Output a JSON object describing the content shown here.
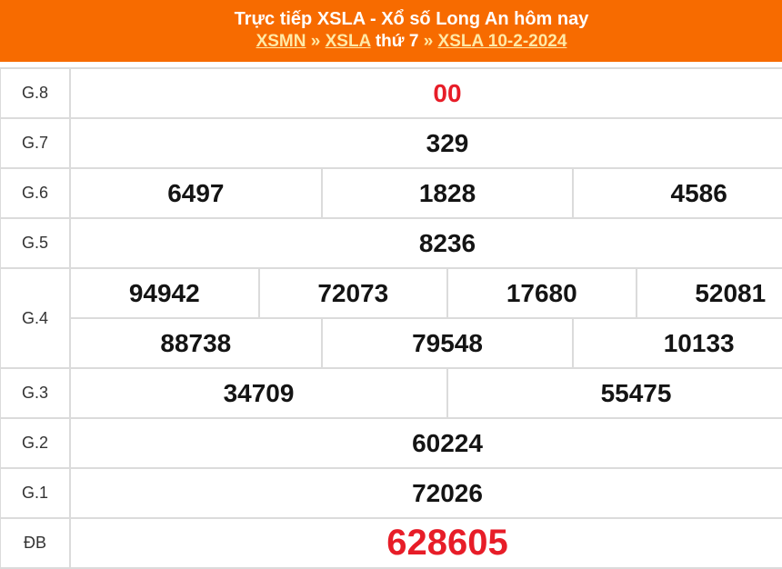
{
  "header": {
    "title": "Trực tiếp XSLA - Xổ số Long An hôm nay",
    "breadcrumb": {
      "home": "XSMN",
      "sep1": "»",
      "region": "XSLA",
      "weekday": "thứ 7",
      "sep2": "»",
      "date_link": "XSLA 10-2-2024"
    }
  },
  "colors": {
    "header_bg": "#F76B00",
    "title_text": "#FFFFFF",
    "breadcrumb_link": "#FFE9A6",
    "value_text": "#141414",
    "highlight_red": "#E71D28",
    "table_border": "#DBDBDB",
    "row_label": "#333333"
  },
  "results": {
    "g8": {
      "label": "G.8",
      "values": [
        "00"
      ]
    },
    "g7": {
      "label": "G.7",
      "values": [
        "329"
      ]
    },
    "g6": {
      "label": "G.6",
      "values": [
        "6497",
        "1828",
        "4586"
      ]
    },
    "g5": {
      "label": "G.5",
      "values": [
        "8236"
      ]
    },
    "g4": {
      "label": "G.4",
      "line1": [
        "94942",
        "72073",
        "17680",
        "52081"
      ],
      "line2": [
        "88738",
        "79548",
        "10133"
      ]
    },
    "g3": {
      "label": "G.3",
      "values": [
        "34709",
        "55475"
      ]
    },
    "g2": {
      "label": "G.2",
      "values": [
        "60224"
      ]
    },
    "g1": {
      "label": "G.1",
      "values": [
        "72026"
      ]
    },
    "db": {
      "label": "ĐB",
      "values": [
        "628605"
      ]
    }
  }
}
